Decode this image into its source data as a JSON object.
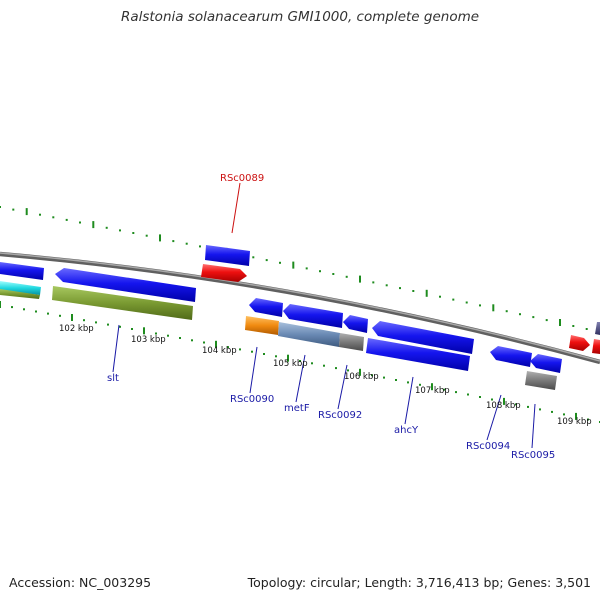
{
  "title": "Ralstonia solanacearum GMI1000, complete genome",
  "footer": {
    "accession": "Accession: NC_003295",
    "summary": "Topology: circular; Length: 3,716,413 bp; Genes: 3,501"
  },
  "ruler_labels": [
    "102 kbp",
    "103 kbp",
    "104 kbp",
    "105 kbp",
    "106 kbp",
    "107 kbp",
    "108 kbp",
    "109 kbp"
  ],
  "gene_labels": [
    {
      "text": "RSc0089",
      "highlight": true
    },
    {
      "text": "slt",
      "highlight": false
    },
    {
      "text": "RSc0090",
      "highlight": false
    },
    {
      "text": "metF",
      "highlight": false
    },
    {
      "text": "RSc0092",
      "highlight": false
    },
    {
      "text": "ahcY",
      "highlight": false
    },
    {
      "text": "RSc0094",
      "highlight": false
    },
    {
      "text": "RSc0095",
      "highlight": false
    }
  ],
  "colors": {
    "cds": "#0a0ae6",
    "highlight": "#e60a0a",
    "label": "#1a1aa6",
    "label_highlight": "#cc1111",
    "ticks": "#1e8c1e",
    "backbone": "#808080"
  }
}
